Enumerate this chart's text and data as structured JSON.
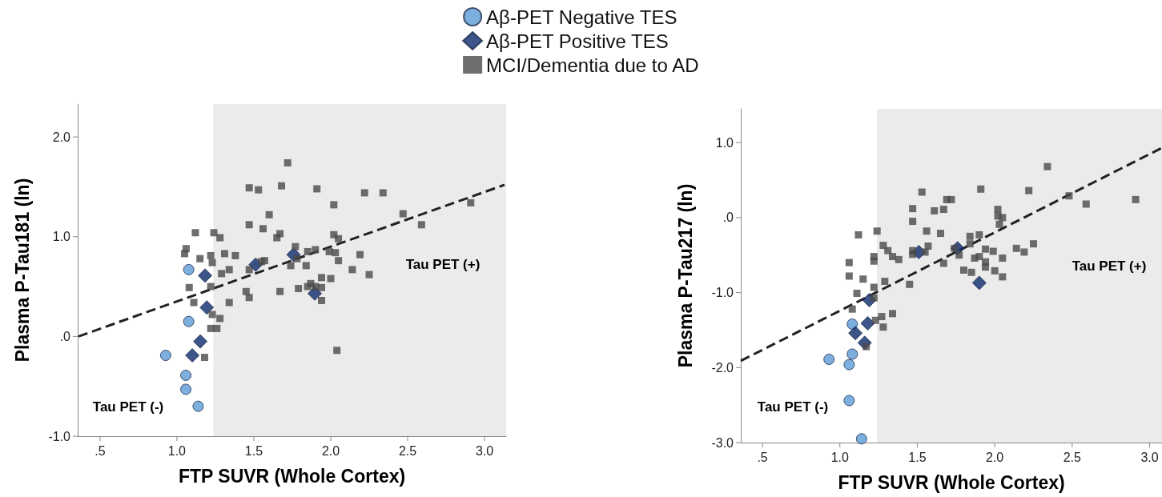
{
  "chart_data": [
    {
      "type": "scatter",
      "xlabel": "FTP SUVR (Whole Cortex)",
      "ylabel": "Plasma P-Tau181 (ln)",
      "legend": "top",
      "grid": false,
      "xlim": [
        0.355,
        3.14
      ],
      "ylim": [
        -1,
        2.33
      ],
      "xticks": [
        {
          "value": 0.5,
          "label": ".5"
        },
        {
          "value": 1,
          "label": "1.0"
        },
        {
          "value": 1.5,
          "label": "1.5"
        },
        {
          "value": 2,
          "label": "2.0"
        },
        {
          "value": 2.5,
          "label": "2.5"
        },
        {
          "value": 3,
          "label": "3.0"
        }
      ],
      "yticks": [
        {
          "value": -1,
          "label": "-1.0"
        },
        {
          "value": 0,
          "label": ".0"
        },
        {
          "value": 1,
          "label": "1.0"
        },
        {
          "value": 2,
          "label": "2.0"
        }
      ],
      "bands": [
        {
          "axis": "x",
          "from": 1.237,
          "to": 3.14,
          "color": "#ebebeb"
        }
      ],
      "annotations": [
        "Tau PET (+)",
        "Tau PET (-)"
      ],
      "series": [
        {
          "name": "Aβ-PET Negative TES",
          "marker": "circle",
          "color": "#5b9bd5",
          "x": [
            1.077,
            1.077,
            0.927,
            1.058,
            1.058,
            1.138
          ],
          "values": [
            0.67,
            0.15,
            -0.19,
            -0.39,
            -0.53,
            -0.7
          ]
        },
        {
          "name": "Aβ-PET Positive TES",
          "marker": "diamond",
          "color": "#0d2a6b",
          "x": [
            1.183,
            1.194,
            1.152,
            1.1,
            1.512,
            1.758,
            1.896
          ],
          "values": [
            0.61,
            0.29,
            -0.05,
            -0.19,
            0.72,
            0.82,
            0.43
          ]
        },
        {
          "name": "MCI/Dementia due to AD",
          "marker": "square",
          "color": "#4a4a4a",
          "x": [
            1.12,
            1.06,
            1.05,
            1.15,
            1.22,
            1.23,
            1.08,
            1.22,
            1.11,
            1.23,
            1.22,
            1.18,
            1.24,
            1.28,
            1.31,
            1.38,
            1.29,
            1.34,
            1.28,
            1.26,
            1.34,
            1.45,
            1.47,
            1.47,
            1.47,
            1.53,
            1.47,
            1.56,
            1.6,
            1.68,
            1.72,
            1.65,
            1.67,
            1.57,
            1.55,
            1.74,
            1.77,
            1.78,
            1.67,
            1.79,
            1.84,
            1.85,
            1.85,
            1.87,
            1.9,
            1.9,
            1.94,
            1.91,
            1.94,
            1.94,
            2.0,
            1.99,
            2.02,
            2.02,
            2.05,
            2.03,
            2.05,
            2.04,
            2.14,
            2.19,
            2.25,
            2.22,
            2.34,
            2.47,
            2.59,
            2.91
          ],
          "values": [
            1.04,
            0.88,
            0.83,
            0.78,
            0.81,
            0.74,
            0.49,
            0.5,
            0.34,
            0.22,
            0.08,
            -0.21,
            1.04,
            0.99,
            0.83,
            0.81,
            0.63,
            0.67,
            0.18,
            0.08,
            0.34,
            0.45,
            0.39,
            0.67,
            1.49,
            1.47,
            1.12,
            1.08,
            1.22,
            1.51,
            1.74,
            0.99,
            1.03,
            0.76,
            0.75,
            0.71,
            0.9,
            0.78,
            0.45,
            0.48,
            0.71,
            0.85,
            0.5,
            0.53,
            0.87,
            0.5,
            0.49,
            1.48,
            0.59,
            0.36,
            0.58,
            0.85,
            1.32,
            1.02,
            0.98,
            0.84,
            0.76,
            -0.14,
            0.67,
            0.82,
            0.62,
            1.44,
            1.44,
            1.23,
            1.12,
            1.34
          ]
        },
        {
          "type": "line",
          "marker": "none",
          "line_style": "dashed",
          "color": "#222222",
          "x": [
            0.36,
            3.13
          ],
          "values": [
            0.0,
            1.52
          ]
        }
      ]
    },
    {
      "type": "scatter",
      "xlabel": "FTP SUVR (Whole Cortex)",
      "ylabel": "Plasma P-Tau217 (ln)",
      "grid": false,
      "xlim": [
        0.36,
        3.08
      ],
      "ylim": [
        -3,
        1.45
      ],
      "xticks": [
        {
          "value": 0.5,
          "label": ".5"
        },
        {
          "value": 1,
          "label": "1.0"
        },
        {
          "value": 1.5,
          "label": "1.5"
        },
        {
          "value": 2,
          "label": "2.0"
        },
        {
          "value": 2.5,
          "label": "2.5"
        },
        {
          "value": 3,
          "label": "3.0"
        }
      ],
      "yticks": [
        {
          "value": -3,
          "label": "-3.0"
        },
        {
          "value": -2,
          "label": "-2.0"
        },
        {
          "value": -1,
          "label": "-1.0"
        },
        {
          "value": 0,
          "label": ".0"
        },
        {
          "value": 1,
          "label": "1.0"
        }
      ],
      "bands": [
        {
          "axis": "x",
          "from": 1.239,
          "to": 3.08,
          "color": "#ebebeb"
        }
      ],
      "annotations": [
        "Tau PET (+)",
        "Tau PET (-)"
      ],
      "series": [
        {
          "marker": "circle",
          "color": "#5b9bd5",
          "x": [
            1.08,
            0.93,
            1.08,
            1.06,
            1.06,
            1.14
          ],
          "values": [
            -1.42,
            -1.89,
            -1.82,
            -1.96,
            -2.44,
            -2.95
          ]
        },
        {
          "marker": "diamond",
          "color": "#0d2a6b",
          "x": [
            1.19,
            1.18,
            1.1,
            1.16,
            1.51,
            1.76,
            1.9
          ],
          "values": [
            -1.1,
            -1.41,
            -1.54,
            -1.67,
            -0.46,
            -0.41,
            -0.87
          ]
        },
        {
          "marker": "square",
          "color": "#4a4a4a",
          "x": [
            1.12,
            1.24,
            1.06,
            1.06,
            1.15,
            1.11,
            1.08,
            1.22,
            1.22,
            1.22,
            1.22,
            1.17,
            1.23,
            1.27,
            1.28,
            1.34,
            1.29,
            1.28,
            1.31,
            1.34,
            1.38,
            1.45,
            1.47,
            1.47,
            1.47,
            1.47,
            1.53,
            1.55,
            1.56,
            1.57,
            1.61,
            1.65,
            1.67,
            1.67,
            1.69,
            1.72,
            1.74,
            1.77,
            1.8,
            1.84,
            1.84,
            1.85,
            1.87,
            1.9,
            1.9,
            1.91,
            1.94,
            1.94,
            1.94,
            1.99,
            2.0,
            2.02,
            2.02,
            2.05,
            2.03,
            2.05,
            2.05,
            2.14,
            2.19,
            2.22,
            2.25,
            2.34,
            2.48,
            2.59,
            2.91
          ],
          "values": [
            -0.23,
            -0.18,
            -0.6,
            -0.78,
            -0.82,
            -1.01,
            -1.22,
            -0.52,
            -0.58,
            -0.93,
            -1.07,
            -1.72,
            -1.37,
            -1.32,
            -1.46,
            -1.28,
            -0.85,
            -0.37,
            -0.44,
            -0.52,
            -0.56,
            -0.89,
            0.12,
            -0.05,
            -0.44,
            -0.49,
            0.34,
            -0.46,
            -0.18,
            -0.38,
            0.09,
            -0.21,
            -0.61,
            0.11,
            0.24,
            0.24,
            -0.41,
            -0.5,
            -0.7,
            -0.25,
            -0.35,
            -0.73,
            -0.54,
            -0.23,
            -0.52,
            0.38,
            -0.42,
            -0.59,
            -0.66,
            -0.45,
            -0.71,
            0.11,
            0.02,
            0.0,
            -0.09,
            -0.54,
            -0.79,
            -0.41,
            -0.46,
            0.36,
            -0.35,
            0.68,
            0.29,
            0.18,
            0.24
          ]
        },
        {
          "type": "line",
          "marker": "none",
          "line_style": "dashed",
          "color": "#222222",
          "x": [
            0.36,
            3.08
          ],
          "values": [
            -1.91,
            0.93
          ]
        }
      ]
    }
  ]
}
